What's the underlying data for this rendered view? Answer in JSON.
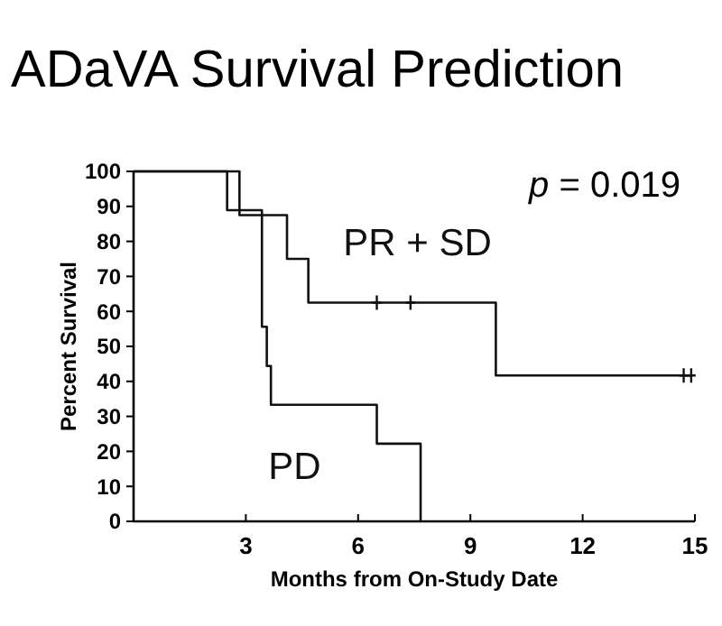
{
  "chart_data": {
    "type": "step",
    "title": "ADaVA Survival Prediction",
    "xlabel": "Months from On-Study Date",
    "ylabel": "Percent Survival",
    "annotations": [
      "p = 0.019"
    ],
    "xlim": [
      0,
      15
    ],
    "xticks": [
      3,
      6,
      9,
      12,
      15
    ],
    "ylim": [
      0,
      100
    ],
    "yticks": [
      0,
      10,
      20,
      30,
      40,
      50,
      60,
      70,
      80,
      90,
      100
    ],
    "grid": false,
    "line_style": "solid",
    "series": [
      {
        "name": "PR + SD",
        "color": "#111111",
        "x": [
          0,
          2.83,
          4.1,
          4.67,
          9.68,
          14.94
        ],
        "values": [
          100,
          87.5,
          75,
          62.5,
          41.7,
          41.7
        ]
      },
      {
        "name": "PD",
        "color": "#111111",
        "x": [
          0,
          2.5,
          3.43,
          3.56,
          3.67,
          6.5,
          7.67
        ],
        "values": [
          100,
          88.9,
          55.6,
          44.4,
          33.3,
          22.2,
          0
        ]
      },
      {
        "type": "scatter",
        "marker": "cross",
        "color": "#111111",
        "x": [
          6.5,
          7.4,
          14.7,
          14.9
        ],
        "values": [
          62.5,
          62.5,
          41.7,
          41.7
        ]
      }
    ]
  }
}
